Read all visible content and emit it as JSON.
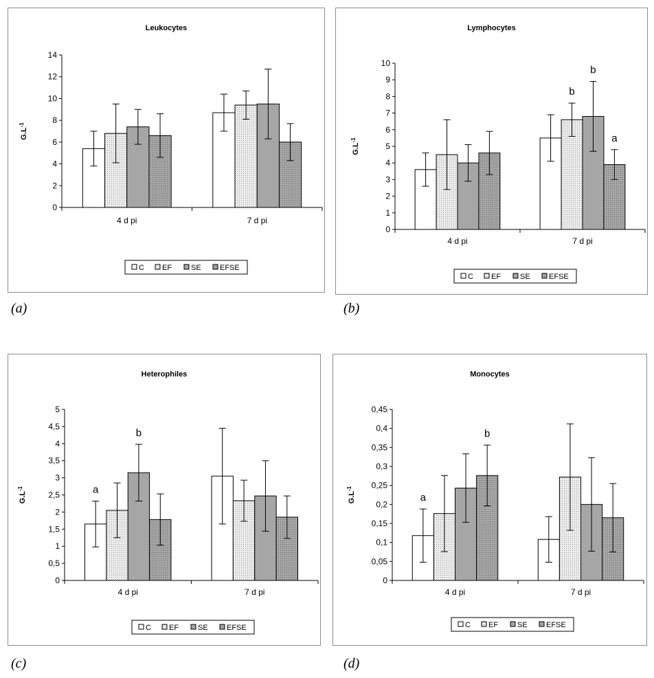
{
  "panel_labels": [
    "(a)",
    "(b)",
    "(c)",
    "(d)"
  ],
  "styles": {
    "C": "#ffffff",
    "EF": "#e6e6e6",
    "SE": "#a6a6a6",
    "EFSE": "#a6a6a6"
  },
  "chart_data": [
    {
      "type": "bar",
      "title": "Leukocytes",
      "ylabel": "G.L-1",
      "ylim": [
        0,
        14
      ],
      "yticks": [
        0,
        2,
        4,
        6,
        8,
        10,
        12,
        14
      ],
      "ytick_labels": [
        "0",
        "2",
        "4",
        "6",
        "8",
        "10",
        "12",
        "14"
      ],
      "categories": [
        "4 d pi",
        "7 d pi"
      ],
      "legend": [
        "C",
        "EF",
        "SE",
        "EFSE"
      ],
      "series": [
        {
          "name": "C",
          "values": [
            5.4,
            8.7
          ],
          "errors": [
            1.6,
            1.7
          ]
        },
        {
          "name": "EF",
          "values": [
            6.8,
            9.4
          ],
          "errors": [
            2.7,
            1.3
          ]
        },
        {
          "name": "SE",
          "values": [
            7.4,
            9.5
          ],
          "errors": [
            1.6,
            3.2
          ]
        },
        {
          "name": "EFSE",
          "values": [
            6.6,
            6.0
          ],
          "errors": [
            2.0,
            1.7
          ]
        }
      ],
      "annotations": []
    },
    {
      "type": "bar",
      "title": "Lymphocytes",
      "ylabel": "G.L-1",
      "ylim": [
        0,
        10
      ],
      "yticks": [
        0,
        1,
        2,
        3,
        4,
        5,
        6,
        7,
        8,
        9,
        10
      ],
      "ytick_labels": [
        "0",
        "1",
        "2",
        "3",
        "4",
        "5",
        "6",
        "7",
        "8",
        "9",
        "10"
      ],
      "categories": [
        "4 d pi",
        "7 d pi"
      ],
      "legend": [
        "C",
        "EF",
        "SE",
        "EFSE"
      ],
      "series": [
        {
          "name": "C",
          "values": [
            3.6,
            5.5
          ],
          "errors": [
            1.0,
            1.4
          ]
        },
        {
          "name": "EF",
          "values": [
            4.5,
            6.6
          ],
          "errors": [
            2.1,
            1.0
          ]
        },
        {
          "name": "SE",
          "values": [
            4.0,
            6.8
          ],
          "errors": [
            1.1,
            2.1
          ]
        },
        {
          "name": "EFSE",
          "values": [
            4.6,
            3.9
          ],
          "errors": [
            1.3,
            0.9
          ]
        }
      ],
      "annotations": [
        {
          "category": 1,
          "series": 1,
          "text": "b"
        },
        {
          "category": 1,
          "series": 2,
          "text": "b"
        },
        {
          "category": 1,
          "series": 3,
          "text": "a"
        }
      ]
    },
    {
      "type": "bar",
      "title": "Heterophiles",
      "ylabel": "G.L-1",
      "ylim": [
        0,
        5
      ],
      "yticks": [
        0,
        0.5,
        1,
        1.5,
        2,
        2.5,
        3,
        3.5,
        4,
        4.5,
        5
      ],
      "ytick_labels": [
        "0",
        "0,5",
        "1",
        "1,5",
        "2",
        "2,5",
        "3",
        "3,5",
        "4",
        "4,5",
        "5"
      ],
      "categories": [
        "4 d pi",
        "7 d pi"
      ],
      "legend": [
        "C",
        "EF",
        "SE",
        "EFSE"
      ],
      "series": [
        {
          "name": "C",
          "values": [
            1.65,
            3.05
          ],
          "errors": [
            0.67,
            1.4
          ]
        },
        {
          "name": "EF",
          "values": [
            2.05,
            2.33
          ],
          "errors": [
            0.8,
            0.6
          ]
        },
        {
          "name": "SE",
          "values": [
            3.15,
            2.47
          ],
          "errors": [
            0.83,
            1.03
          ]
        },
        {
          "name": "EFSE",
          "values": [
            1.78,
            1.85
          ],
          "errors": [
            0.75,
            0.62
          ]
        }
      ],
      "annotations": [
        {
          "category": 0,
          "series": 0,
          "text": "a"
        },
        {
          "category": 0,
          "series": 2,
          "text": "b"
        }
      ]
    },
    {
      "type": "bar",
      "title": "Monocytes",
      "ylabel": "G.L-1",
      "ylim": [
        0,
        0.45
      ],
      "yticks": [
        0,
        0.05,
        0.1,
        0.15,
        0.2,
        0.25,
        0.3,
        0.35,
        0.4,
        0.45
      ],
      "ytick_labels": [
        "0",
        "0,05",
        "0,1",
        "0,15",
        "0,2",
        "0,25",
        "0,3",
        "0,35",
        "0,4",
        "0,45"
      ],
      "categories": [
        "4 d pi",
        "7 d pi"
      ],
      "legend": [
        "C",
        "EF",
        "SE",
        "EFSE"
      ],
      "series": [
        {
          "name": "C",
          "values": [
            0.118,
            0.108
          ],
          "errors": [
            0.07,
            0.06
          ]
        },
        {
          "name": "EF",
          "values": [
            0.176,
            0.272
          ],
          "errors": [
            0.1,
            0.14
          ]
        },
        {
          "name": "SE",
          "values": [
            0.243,
            0.2
          ],
          "errors": [
            0.09,
            0.123
          ]
        },
        {
          "name": "EFSE",
          "values": [
            0.276,
            0.165
          ],
          "errors": [
            0.08,
            0.09
          ]
        }
      ],
      "annotations": [
        {
          "category": 0,
          "series": 0,
          "text": "a"
        },
        {
          "category": 0,
          "series": 3,
          "text": "b"
        }
      ]
    }
  ]
}
